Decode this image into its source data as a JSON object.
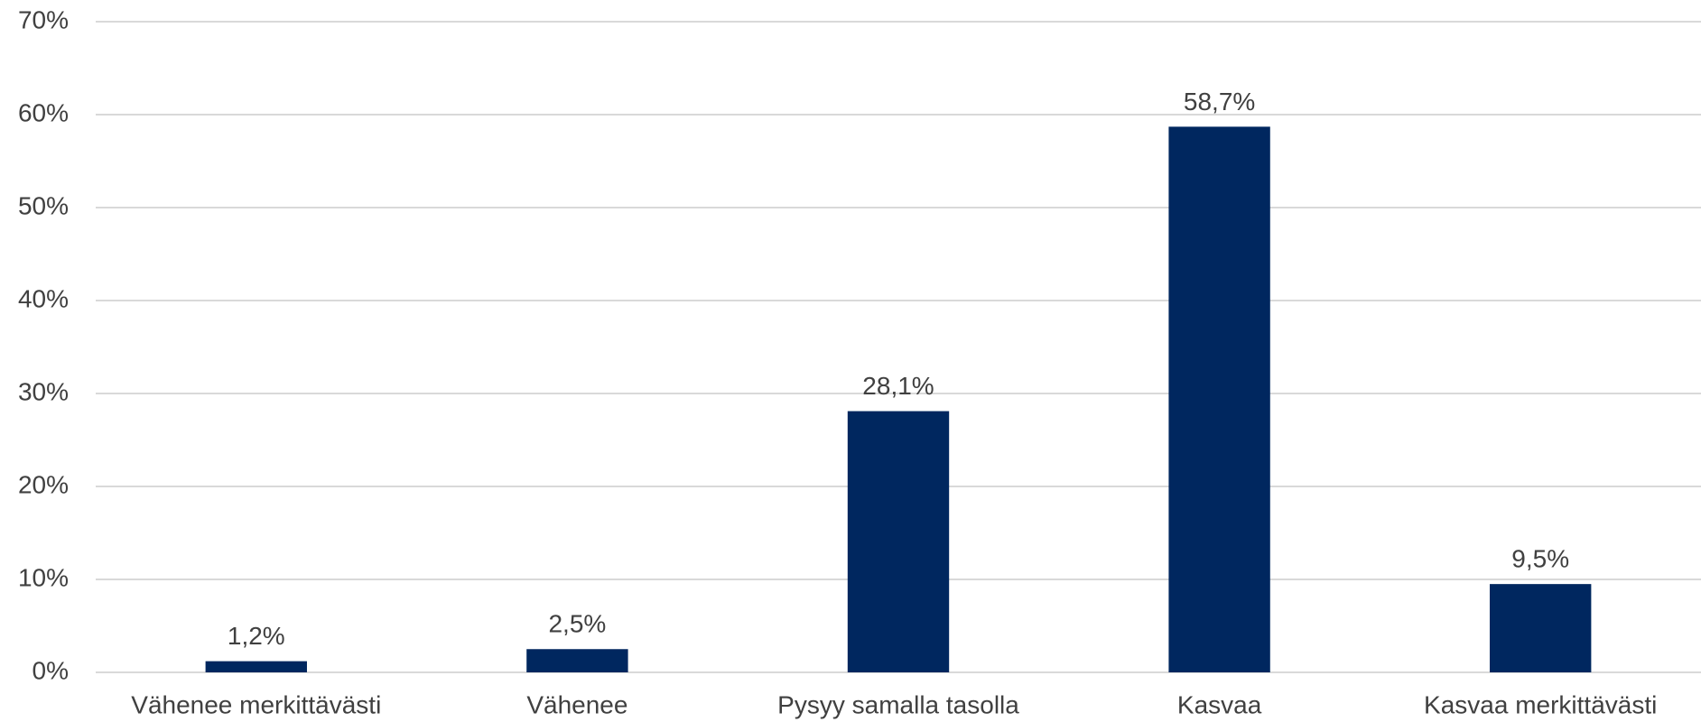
{
  "chart_data": {
    "type": "bar",
    "categories": [
      "Vähenee merkittävästi",
      "Vähenee",
      "Pysyy samalla tasolla",
      "Kasvaa",
      "Kasvaa merkittävästi"
    ],
    "values": [
      1.2,
      2.5,
      28.1,
      58.7,
      9.5
    ],
    "value_labels": [
      "1,2%",
      "2,5%",
      "28,1%",
      "58,7%",
      "9,5%"
    ],
    "color": "#00275f",
    "ylim": [
      0,
      70
    ],
    "yticks": [
      {
        "value": 0,
        "label": "0%"
      },
      {
        "value": 10,
        "label": "10%"
      },
      {
        "value": 20,
        "label": "20%"
      },
      {
        "value": 30,
        "label": "30%"
      },
      {
        "value": 40,
        "label": "40%"
      },
      {
        "value": 50,
        "label": "50%"
      },
      {
        "value": 60,
        "label": "60%"
      },
      {
        "value": 70,
        "label": "70%"
      }
    ],
    "grid": true
  }
}
